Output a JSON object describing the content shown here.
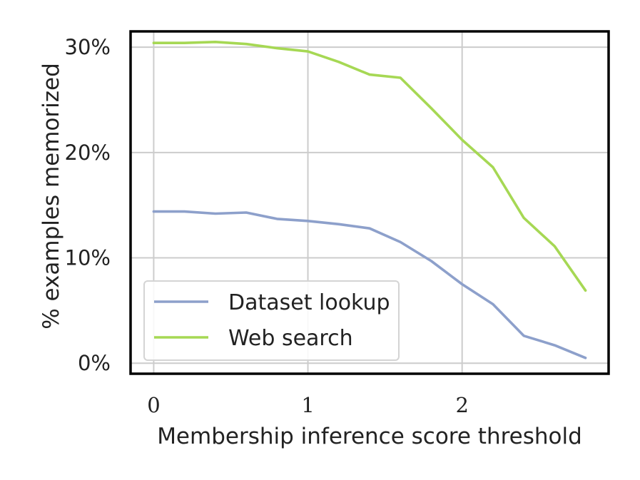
{
  "chart_data": {
    "type": "line",
    "title": "",
    "xlabel": "Membership inference score threshold",
    "ylabel": "% examples memorized",
    "xlim": [
      -0.15,
      2.95
    ],
    "ylim": [
      -1.0,
      31.5
    ],
    "x_ticks": [
      0,
      1,
      2
    ],
    "x_tick_labels": [
      "0",
      "1",
      "2"
    ],
    "y_ticks": [
      0,
      10,
      20,
      30
    ],
    "y_tick_labels": [
      "0%",
      "10%",
      "20%",
      "30%"
    ],
    "grid": true,
    "legend_position": "lower-left",
    "x": [
      0.0,
      0.2,
      0.4,
      0.6,
      0.8,
      1.0,
      1.2,
      1.4,
      1.6,
      1.8,
      2.0,
      2.2,
      2.4,
      2.6,
      2.8
    ],
    "series": [
      {
        "name": "Dataset lookup",
        "color": "#8da0cb",
        "values": [
          14.4,
          14.4,
          14.2,
          14.3,
          13.7,
          13.5,
          13.2,
          12.8,
          11.5,
          9.7,
          7.5,
          5.6,
          2.6,
          1.7,
          0.5
        ]
      },
      {
        "name": "Web search",
        "color": "#a6d854",
        "values": [
          30.4,
          30.4,
          30.5,
          30.3,
          29.9,
          29.6,
          28.6,
          27.4,
          27.1,
          24.2,
          21.2,
          18.6,
          13.8,
          11.1,
          6.9
        ]
      }
    ]
  }
}
